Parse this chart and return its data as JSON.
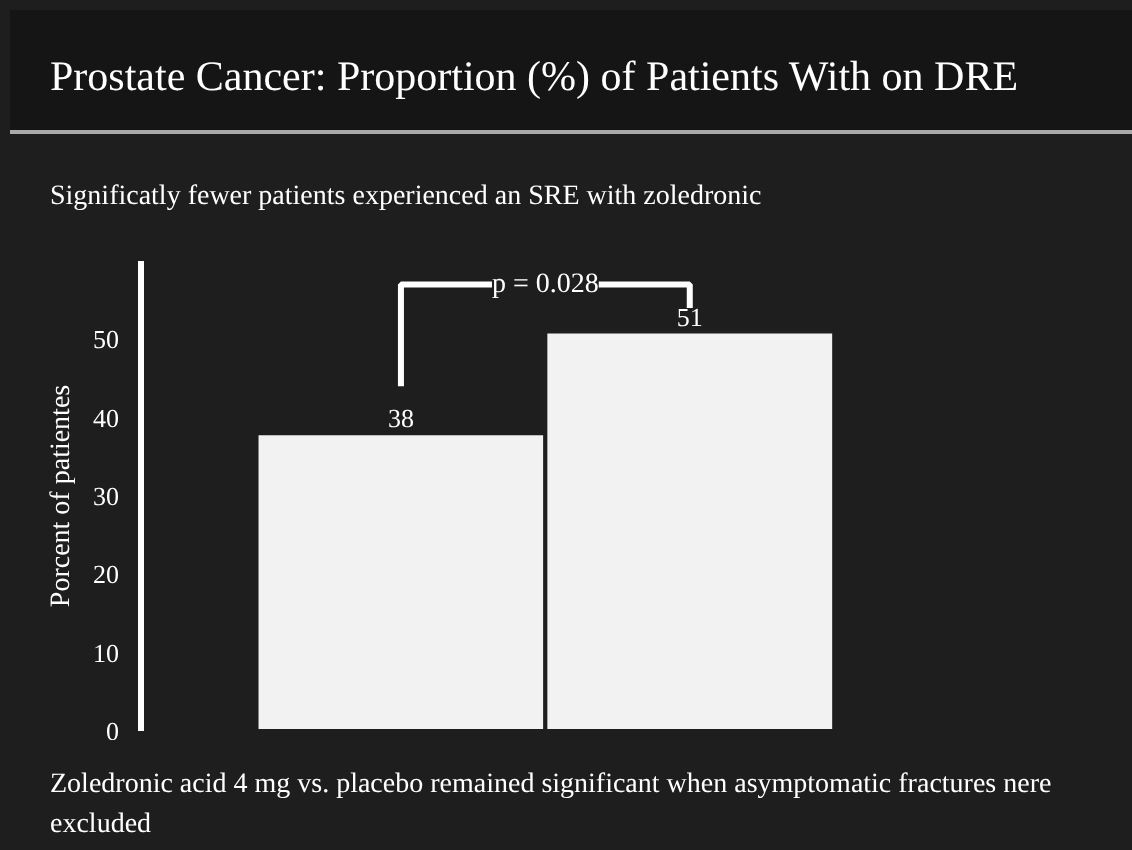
{
  "chart_data": {
    "type": "bar",
    "title": "Prostate Cancer: Proportion (%) of Patients With on DRE",
    "subtitle": "Significatly fewer patients experienced an SRE with zoledronic",
    "ylabel": "Porcent of patientes",
    "categories": [
      null,
      null
    ],
    "values": [
      38,
      51
    ],
    "color": "#f2f2f2",
    "ylim": [
      0,
      60
    ],
    "yticks": [
      0,
      10,
      20,
      30,
      40,
      50
    ],
    "tick_labels": "y",
    "data_labels": true,
    "grid": false,
    "annotations": [
      "p = 0.028",
      "Zoledronic acid 4 mg vs. placebo remained significant when asymptomatic fractures nere excluded"
    ]
  }
}
